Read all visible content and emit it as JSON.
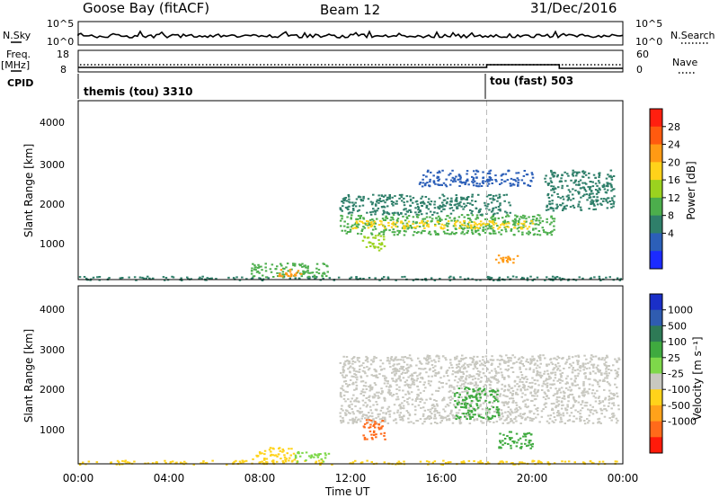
{
  "header": {
    "station": "Goose Bay (fitACF)",
    "beam": "Beam 12",
    "date": "31/Dec/2016"
  },
  "status_panels": {
    "nsky_label": "N.Sky",
    "nsky_ticks": [
      "10^5",
      "10^0"
    ],
    "nsearch_label": "N.Search",
    "nsearch_ticks": [
      "10^5",
      "10^0"
    ],
    "freq_label": "Freq.",
    "freq_unit": "[MHz]",
    "freq_ticks": [
      "18",
      "8"
    ],
    "nave_label": "Nave",
    "nave_ticks": [
      "60",
      "0"
    ],
    "cpid_label": "CPID",
    "cpid_segments": [
      {
        "label": "themis (tou) 3310",
        "start_hour": 0
      },
      {
        "label": "tou (fast) 503",
        "start_hour": 18
      }
    ]
  },
  "colorbars": {
    "power": {
      "label": "Power [dB]",
      "ticks": [
        "28",
        "24",
        "20",
        "16",
        "12",
        "8",
        "4"
      ],
      "colors": [
        "#1b2bff",
        "#2c5fb8",
        "#2f7f6a",
        "#4cae4c",
        "#9bd21f",
        "#ffd21a",
        "#ff9a14",
        "#ff5a0f",
        "#ff1f0f"
      ]
    },
    "velocity": {
      "label": "Velocity [m s⁻¹]",
      "ticks": [
        "1000",
        "500",
        "100",
        "25",
        "-25",
        "-100",
        "-500",
        "-1000"
      ],
      "colors": [
        "#1a2fc8",
        "#2f5cb0",
        "#2e7a56",
        "#3faa3f",
        "#7ed84a",
        "#c8c8c0",
        "#ffd31a",
        "#ffa21a",
        "#ff6a1a",
        "#ff1a0a"
      ]
    }
  },
  "axes": {
    "ylabel": "Slant Range [km]",
    "xlabel": "Time UT",
    "y_ticks": [
      "1000",
      "2000",
      "3000",
      "4000"
    ],
    "x_ticks": [
      "00:00",
      "04:00",
      "08:00",
      "12:00",
      "16:00",
      "20:00",
      "00:00"
    ]
  },
  "chart_data": [
    {
      "type": "heatmap",
      "name": "power",
      "xlabel": "Time UT",
      "ylabel": "Slant Range [km]",
      "xlim": [
        0,
        24
      ],
      "ylim": [
        180,
        4600
      ],
      "colorbar_label": "Power [dB]",
      "colorbar_ticks": [
        4,
        8,
        12,
        16,
        20,
        24,
        28
      ],
      "regions": [
        {
          "t0": 0.0,
          "t1": 24.0,
          "r0": 180,
          "r1": 280,
          "value": 8
        },
        {
          "t0": 7.6,
          "t1": 11.0,
          "r0": 250,
          "r1": 600,
          "value": 14
        },
        {
          "t0": 8.8,
          "t1": 9.8,
          "r0": 280,
          "r1": 450,
          "value": 27
        },
        {
          "t0": 11.5,
          "t1": 21.0,
          "r0": 1300,
          "r1": 1800,
          "value": 15
        },
        {
          "t0": 12.0,
          "t1": 20.0,
          "r0": 1450,
          "r1": 1650,
          "value": 20
        },
        {
          "t0": 11.5,
          "t1": 19.0,
          "r0": 1800,
          "r1": 2300,
          "value": 8
        },
        {
          "t0": 15.0,
          "t1": 20.0,
          "r0": 2500,
          "r1": 2900,
          "value": 6
        },
        {
          "t0": 12.5,
          "t1": 13.5,
          "r0": 900,
          "r1": 1300,
          "value": 17
        },
        {
          "t0": 18.3,
          "t1": 19.5,
          "r0": 600,
          "r1": 800,
          "value": 24
        },
        {
          "t0": 20.5,
          "t1": 23.6,
          "r0": 1900,
          "r1": 2900,
          "value": 10
        }
      ]
    },
    {
      "type": "heatmap",
      "name": "velocity",
      "xlabel": "Time UT",
      "ylabel": "Slant Range [km]",
      "xlim": [
        0,
        24
      ],
      "ylim": [
        180,
        4600
      ],
      "colorbar_label": "Velocity [m s⁻¹]",
      "colorbar_ticks": [
        -1000,
        -500,
        -100,
        -25,
        25,
        100,
        500,
        1000
      ],
      "regions": [
        {
          "t0": 0.0,
          "t1": 24.0,
          "r0": 180,
          "r1": 280,
          "value": -60
        },
        {
          "t0": 7.6,
          "t1": 9.5,
          "r0": 250,
          "r1": 600,
          "value": -80
        },
        {
          "t0": 9.5,
          "t1": 11.0,
          "r0": 250,
          "r1": 500,
          "value": 60
        },
        {
          "t0": 11.5,
          "t1": 23.8,
          "r0": 1200,
          "r1": 2900,
          "value": 0
        },
        {
          "t0": 12.5,
          "t1": 13.5,
          "r0": 800,
          "r1": 1300,
          "value": -700
        },
        {
          "t0": 16.5,
          "t1": 18.5,
          "r0": 1300,
          "r1": 2100,
          "value": 300
        },
        {
          "t0": 18.5,
          "t1": 20.0,
          "r0": 550,
          "r1": 1000,
          "value": 120
        }
      ]
    }
  ]
}
